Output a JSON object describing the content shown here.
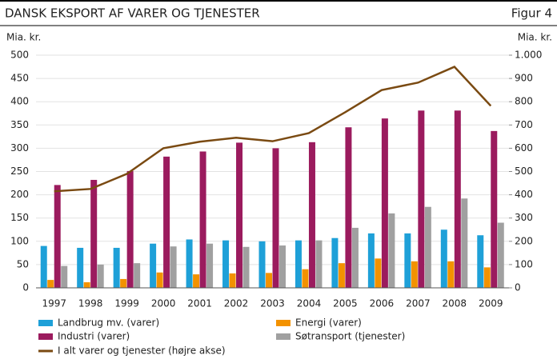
{
  "chart_data": {
    "type": "bar",
    "title": "DANSK EKSPORT AF VARER OG TJENESTER",
    "figure_label": "Figur 4",
    "y_axis_label": "Mia. kr.",
    "y2_axis_label": "Mia. kr.",
    "categories": [
      "1997",
      "1998",
      "1999",
      "2000",
      "2001",
      "2002",
      "2003",
      "2004",
      "2005",
      "2006",
      "2007",
      "2008",
      "2009"
    ],
    "series": [
      {
        "name": "Landbrug mv. (varer)",
        "color": "#1ea0d8",
        "values": [
          90,
          86,
          86,
          95,
          104,
          102,
          100,
          102,
          107,
          117,
          117,
          125,
          113
        ]
      },
      {
        "name": "Energi (varer)",
        "color": "#f39200",
        "values": [
          17,
          12,
          19,
          33,
          29,
          31,
          32,
          40,
          53,
          63,
          57,
          57,
          44
        ]
      },
      {
        "name": "Industri (varer)",
        "color": "#9b1b5e",
        "values": [
          221,
          232,
          251,
          282,
          293,
          312,
          300,
          313,
          345,
          364,
          381,
          381,
          337
        ]
      },
      {
        "name": "Søtransport (tjenester)",
        "color": "#a0a0a0",
        "values": [
          47,
          50,
          53,
          89,
          95,
          88,
          91,
          102,
          129,
          160,
          174,
          192,
          140
        ]
      },
      {
        "name": "I alt varer og tjenester (højre akse)",
        "color": "#7a4a12",
        "type": "line",
        "axis": "y2",
        "values": [
          415,
          425,
          490,
          600,
          628,
          645,
          630,
          665,
          755,
          850,
          882,
          950,
          782
        ]
      }
    ],
    "ylim": [
      0,
      500
    ],
    "yticks": [
      0,
      50,
      100,
      150,
      200,
      250,
      300,
      350,
      400,
      450,
      500
    ],
    "y2lim": [
      0,
      1000
    ],
    "y2ticks": [
      0,
      100,
      200,
      300,
      400,
      500,
      600,
      700,
      800,
      900,
      {
        "value": 1000,
        "label": "1.000"
      }
    ],
    "grid": true
  }
}
